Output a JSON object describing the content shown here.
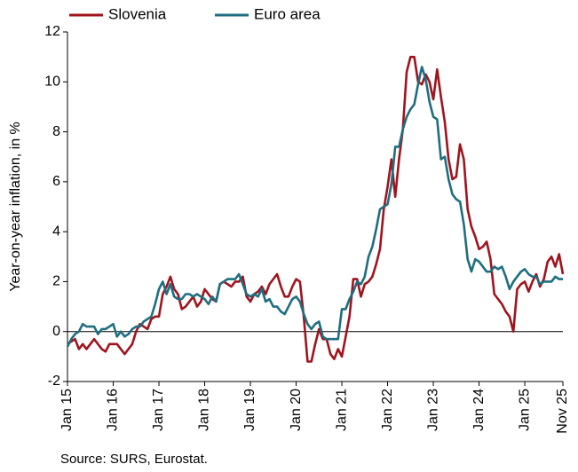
{
  "chart_data": {
    "type": "line",
    "y_label": "Year-on-year inflation, in %",
    "source": "Source: SURS, Eurostat.",
    "categories": [
      "Jan 15",
      null,
      null,
      null,
      null,
      null,
      null,
      null,
      null,
      null,
      null,
      null,
      "Jan 16",
      null,
      null,
      null,
      null,
      null,
      null,
      null,
      null,
      null,
      null,
      null,
      "Jan 17",
      null,
      null,
      null,
      null,
      null,
      null,
      null,
      null,
      null,
      null,
      null,
      "Jan 18",
      null,
      null,
      null,
      null,
      null,
      null,
      null,
      null,
      null,
      null,
      null,
      "Jan 19",
      null,
      null,
      null,
      null,
      null,
      null,
      null,
      null,
      null,
      null,
      null,
      "Jan 20",
      null,
      null,
      null,
      null,
      null,
      null,
      null,
      null,
      null,
      null,
      null,
      "Jan 21",
      null,
      null,
      null,
      null,
      null,
      null,
      null,
      null,
      null,
      null,
      null,
      "Jan 22",
      null,
      null,
      null,
      null,
      null,
      null,
      null,
      null,
      null,
      null,
      null,
      "Jan 23",
      null,
      null,
      null,
      null,
      null,
      null,
      null,
      null,
      null,
      null,
      null,
      "Jan 24",
      null,
      null,
      null,
      null,
      null,
      null,
      null,
      null,
      null,
      null,
      null,
      "Jan 25",
      null,
      null,
      null,
      null,
      null,
      null,
      null,
      null,
      null,
      "Nov 25"
    ],
    "series": [
      {
        "name": "Slovenia",
        "color": "#a0141e",
        "values": [
          -0.5,
          -0.4,
          -0.3,
          -0.7,
          -0.5,
          -0.7,
          -0.5,
          -0.3,
          -0.5,
          -0.7,
          -0.8,
          -0.5,
          -0.5,
          -0.5,
          -0.7,
          -0.9,
          -0.7,
          -0.5,
          0.0,
          0.3,
          0.2,
          0.1,
          0.5,
          0.6,
          0.6,
          1.5,
          1.8,
          2.2,
          1.7,
          1.5,
          0.9,
          1.0,
          1.2,
          1.4,
          1.0,
          1.2,
          1.7,
          1.5,
          1.3,
          1.2,
          1.9,
          2.0,
          1.9,
          1.8,
          2.0,
          2.0,
          2.2,
          1.4,
          1.2,
          1.5,
          1.6,
          1.8,
          1.5,
          1.9,
          2.1,
          2.3,
          1.8,
          1.4,
          1.4,
          1.8,
          2.1,
          2.0,
          0.6,
          -1.2,
          -1.2,
          -0.5,
          0.1,
          -0.3,
          -0.3,
          -0.9,
          -1.1,
          -0.7,
          -1.0,
          -0.2,
          0.6,
          2.1,
          2.1,
          1.4,
          1.9,
          2.0,
          2.2,
          2.7,
          3.3,
          4.9,
          5.8,
          6.9,
          5.4,
          6.9,
          8.1,
          10.4,
          11.0,
          11.0,
          10.0,
          9.9,
          10.3,
          10.0,
          9.3,
          10.5,
          9.4,
          8.4,
          6.9,
          6.1,
          6.2,
          7.5,
          6.9,
          4.9,
          4.2,
          3.8,
          3.3,
          3.4,
          3.6,
          2.9,
          1.5,
          1.3,
          1.1,
          0.8,
          0.6,
          0.0,
          1.7,
          1.9,
          2.0,
          1.6,
          2.0,
          2.3,
          1.8,
          2.1,
          2.8,
          3.0,
          2.6,
          3.1,
          2.3
        ]
      },
      {
        "name": "Euro area",
        "color": "#1f6e80",
        "values": [
          -0.6,
          -0.3,
          -0.1,
          0.0,
          0.3,
          0.2,
          0.2,
          0.2,
          -0.1,
          0.1,
          0.1,
          0.2,
          0.3,
          -0.2,
          0.0,
          -0.2,
          -0.1,
          0.1,
          0.2,
          0.2,
          0.4,
          0.5,
          0.6,
          1.1,
          1.7,
          2.0,
          1.5,
          1.9,
          1.4,
          1.3,
          1.3,
          1.5,
          1.5,
          1.4,
          1.5,
          1.4,
          1.3,
          1.1,
          1.4,
          1.2,
          1.9,
          2.0,
          2.1,
          2.1,
          2.1,
          2.3,
          1.9,
          1.5,
          1.4,
          1.5,
          1.4,
          1.7,
          1.2,
          1.3,
          1.0,
          1.0,
          0.8,
          0.7,
          1.0,
          1.3,
          1.4,
          1.2,
          0.7,
          0.3,
          0.1,
          0.3,
          0.4,
          -0.2,
          -0.3,
          -0.3,
          -0.3,
          -0.3,
          0.9,
          0.9,
          1.3,
          1.6,
          2.0,
          1.9,
          2.2,
          3.0,
          3.4,
          4.1,
          4.9,
          5.0,
          5.1,
          5.9,
          7.4,
          7.4,
          8.1,
          8.6,
          8.9,
          9.1,
          9.9,
          10.6,
          10.1,
          9.2,
          8.6,
          8.5,
          6.9,
          7.0,
          6.1,
          5.5,
          5.3,
          5.2,
          4.3,
          2.9,
          2.4,
          2.9,
          2.8,
          2.6,
          2.4,
          2.4,
          2.6,
          2.5,
          2.6,
          2.2,
          1.7,
          2.0,
          2.2,
          2.4,
          2.5,
          2.3,
          2.2,
          2.2,
          1.9,
          2.0,
          2.0,
          2.0,
          2.2,
          2.1,
          2.1
        ]
      }
    ],
    "ylim": [
      -2,
      12
    ],
    "yticks": [
      -2,
      0,
      2,
      4,
      6,
      8,
      10,
      12
    ],
    "grid": false
  }
}
